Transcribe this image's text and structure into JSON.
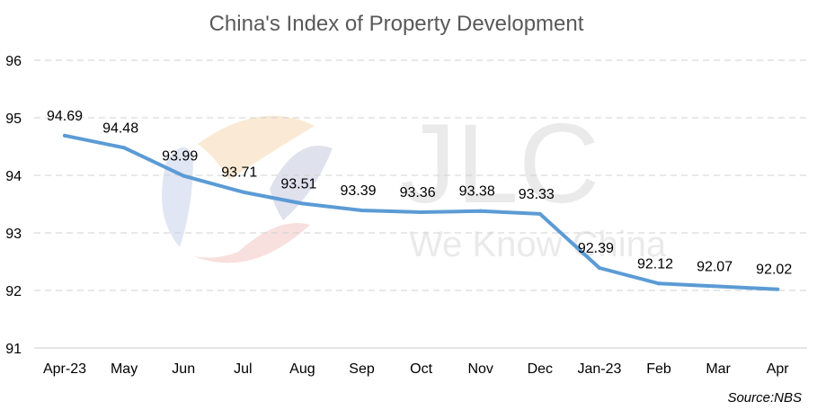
{
  "chart_data": {
    "type": "line",
    "title": "China's Index of Property Development",
    "categories": [
      "Apr-23",
      "May",
      "Jun",
      "Jul",
      "Aug",
      "Sep",
      "Oct",
      "Nov",
      "Dec",
      "Jan-23",
      "Feb",
      "Mar",
      "Apr"
    ],
    "series": [
      {
        "values": [
          94.69,
          94.48,
          93.99,
          93.71,
          93.51,
          93.39,
          93.36,
          93.38,
          93.33,
          92.39,
          92.12,
          92.07,
          92.02
        ],
        "color": "#5b9bd5"
      }
    ],
    "data_labels": [
      "94.69",
      "94.48",
      "93.99",
      "93.71",
      "93.51",
      "93.39",
      "93.36",
      "93.38",
      "93.33",
      "92.39",
      "92.12",
      "92.07",
      "92.02"
    ],
    "ylim": [
      91,
      96
    ],
    "yticks": [
      91,
      92,
      93,
      94,
      95,
      96
    ],
    "grid": true,
    "legend": "none",
    "source": "Source:NBS"
  },
  "watermark": {
    "brand": "JLC",
    "tagline": "We Know China"
  }
}
